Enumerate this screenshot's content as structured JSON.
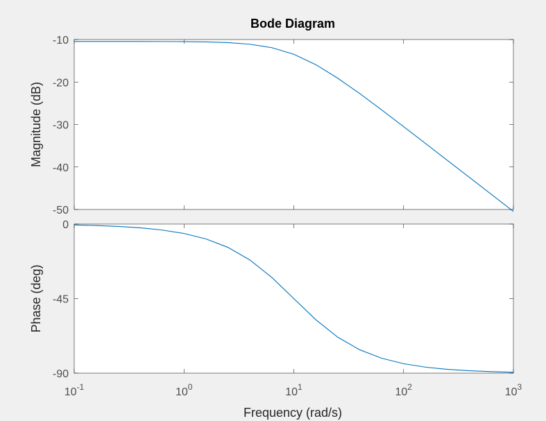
{
  "chart_data": {
    "type": "bode",
    "title": "Bode Diagram",
    "xlabel": "Frequency  (rad/s)",
    "x": [
      0.1,
      0.1585,
      0.2512,
      0.3981,
      0.631,
      1,
      1.585,
      2.512,
      3.981,
      6.31,
      10,
      15.85,
      25.12,
      39.81,
      63.1,
      100,
      158.5,
      251.2,
      398.1,
      631,
      1000
    ],
    "xlim": [
      0.1,
      1000
    ],
    "xscale": "log",
    "xticks": [
      {
        "value": 0.1,
        "label": "10",
        "exponent": "-1"
      },
      {
        "value": 1,
        "label": "10",
        "exponent": "0"
      },
      {
        "value": 10,
        "label": "10",
        "exponent": "1"
      },
      {
        "value": 100,
        "label": "10",
        "exponent": "2"
      },
      {
        "value": 1000,
        "label": "10",
        "exponent": "3"
      }
    ],
    "panels": [
      {
        "ylabel": "Magnitude (dB)",
        "ylim": [
          -50,
          -10
        ],
        "yticks": [
          -50,
          -40,
          -30,
          -20,
          -10
        ],
        "series": [
          {
            "color": "#0072bd",
            "values": [
              -10.46,
              -10.46,
              -10.46,
              -10.46,
              -10.47,
              -10.5,
              -10.56,
              -10.72,
              -11.1,
              -11.92,
              -13.47,
              -15.91,
              -19.1,
              -22.71,
              -26.57,
              -30.5,
              -34.48,
              -38.47,
              -42.46,
              -46.46,
              -50.46
            ]
          }
        ]
      },
      {
        "ylabel": "Phase (deg)",
        "ylim": [
          -90,
          0
        ],
        "yticks": [
          -90,
          -45,
          0
        ],
        "series": [
          {
            "color": "#0072bd",
            "values": [
              -0.57,
              -0.91,
              -1.44,
              -2.28,
              -3.61,
              -5.71,
              -9.0,
              -14.1,
              -21.7,
              -32.26,
              -45,
              -57.74,
              -68.3,
              -75.9,
              -81.0,
              -84.29,
              -86.39,
              -87.72,
              -88.56,
              -89.09,
              -89.43
            ]
          }
        ]
      }
    ]
  }
}
